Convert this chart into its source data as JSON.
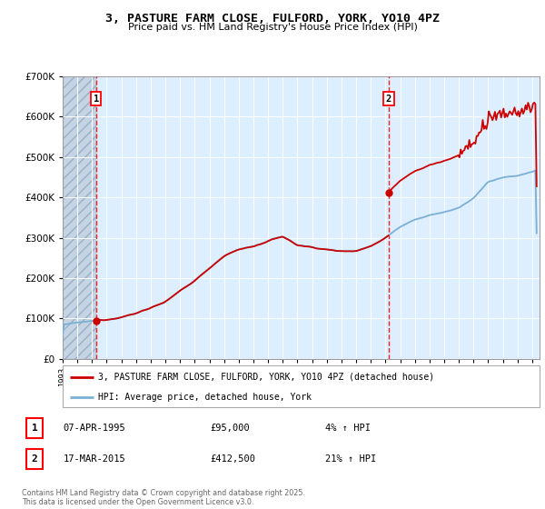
{
  "title": "3, PASTURE FARM CLOSE, FULFORD, YORK, YO10 4PZ",
  "subtitle": "Price paid vs. HM Land Registry's House Price Index (HPI)",
  "legend_label_red": "3, PASTURE FARM CLOSE, FULFORD, YORK, YO10 4PZ (detached house)",
  "legend_label_blue": "HPI: Average price, detached house, York",
  "sale1_date": "07-APR-1995",
  "sale1_price": 95000,
  "sale1_label": "£95,000",
  "sale1_pct": "4% ↑ HPI",
  "sale2_date": "17-MAR-2015",
  "sale2_price": 412500,
  "sale2_label": "£412,500",
  "sale2_pct": "21% ↑ HPI",
  "footnote": "Contains HM Land Registry data © Crown copyright and database right 2025.\nThis data is licensed under the Open Government Licence v3.0.",
  "ylim": [
    0,
    700000
  ],
  "xmin": 1993.0,
  "xmax": 2025.5,
  "sale1_year": 1995.27,
  "sale2_year": 2015.21,
  "bg_color": "#ddeeff",
  "hatch_color": "#bbccdd",
  "red_color": "#cc0000",
  "blue_color": "#7ab0d4",
  "white_grid": "#ffffff",
  "fig_bg": "#ffffff"
}
